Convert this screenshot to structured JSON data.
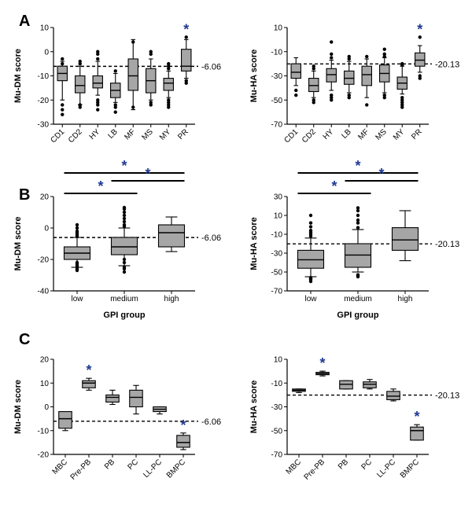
{
  "panel_labels": [
    "A",
    "B",
    "C"
  ],
  "colors": {
    "box_fill": "#a6a6a6",
    "star": "#1f3a93",
    "line": "#000000",
    "outlier": "#000000"
  },
  "chart_data": [
    {
      "id": "A-left",
      "type": "box",
      "panel": "A",
      "ylabel": "Mu-DM score",
      "xlabel": "",
      "ylim": [
        -30,
        10
      ],
      "yticks": [
        -30,
        -20,
        -10,
        0,
        10
      ],
      "reference": {
        "value": -6.06,
        "label": "-6.06"
      },
      "rotated_labels": true,
      "categories": [
        "CD1",
        "CD2",
        "HY",
        "LB",
        "MF",
        "MS",
        "MY",
        "PR"
      ],
      "boxes": [
        {
          "whisker_low": -20,
          "q1": -12,
          "median": -9,
          "q3": -6,
          "whisker_high": -4,
          "outliers": [
            -26,
            -24,
            -22,
            -5,
            -3
          ]
        },
        {
          "whisker_low": -22,
          "q1": -17,
          "median": -14,
          "q3": -10,
          "whisker_high": -6,
          "outliers": [
            -23,
            -22,
            -5,
            -4
          ]
        },
        {
          "whisker_low": -18,
          "q1": -15,
          "median": -13,
          "q3": -10,
          "whisker_high": -4,
          "outliers": [
            -24,
            -22,
            -21,
            -20,
            -3,
            -1,
            0
          ]
        },
        {
          "whisker_low": -21,
          "q1": -19,
          "median": -16,
          "q3": -13,
          "whisker_high": -9,
          "outliers": [
            -25,
            -23,
            -22,
            -8
          ]
        },
        {
          "whisker_low": -24,
          "q1": -16,
          "median": -10,
          "q3": -3,
          "whisker_high": 5,
          "outliers": [
            -23,
            4
          ]
        },
        {
          "whisker_low": -20,
          "q1": -17,
          "median": -12,
          "q3": -7,
          "whisker_high": -3,
          "outliers": [
            -22,
            -21,
            -1,
            0
          ]
        },
        {
          "whisker_low": -19,
          "q1": -16,
          "median": -13,
          "q3": -11,
          "whisker_high": -8,
          "outliers": [
            -23,
            -22,
            -21,
            -20,
            -7,
            -6,
            -5
          ]
        },
        {
          "whisker_low": -11,
          "q1": -8,
          "median": -6,
          "q3": 1,
          "whisker_high": 5,
          "outliers": [
            -13,
            -12,
            6
          ]
        }
      ],
      "significant": [
        7
      ]
    },
    {
      "id": "A-right",
      "type": "box",
      "panel": "A",
      "ylabel": "Mu-HA score",
      "xlabel": "",
      "ylim": [
        -70,
        10
      ],
      "yticks": [
        -70,
        -50,
        -30,
        -10,
        10
      ],
      "reference": {
        "value": -20.13,
        "label": "-20.13"
      },
      "rotated_labels": true,
      "categories": [
        "CD1",
        "CD2",
        "HY",
        "LB",
        "MF",
        "MS",
        "MY",
        "PR"
      ],
      "boxes": [
        {
          "whisker_low": -38,
          "q1": -32,
          "median": -27,
          "q3": -20,
          "whisker_high": -15,
          "outliers": [
            -46,
            -42
          ]
        },
        {
          "whisker_low": -48,
          "q1": -43,
          "median": -38,
          "q3": -32,
          "whisker_high": -26,
          "outliers": [
            -52,
            -50,
            -24,
            -22
          ]
        },
        {
          "whisker_low": -42,
          "q1": -35,
          "median": -29,
          "q3": -24,
          "whisker_high": -17,
          "outliers": [
            -50,
            -48,
            -46,
            -15,
            -12,
            -2
          ]
        },
        {
          "whisker_low": -44,
          "q1": -37,
          "median": -32,
          "q3": -26,
          "whisker_high": -18,
          "outliers": [
            -48,
            -46,
            -16,
            -14
          ]
        },
        {
          "whisker_low": -48,
          "q1": -38,
          "median": -29,
          "q3": -22,
          "whisker_high": -16,
          "outliers": [
            -54,
            -14
          ]
        },
        {
          "whisker_low": -44,
          "q1": -35,
          "median": -28,
          "q3": -21,
          "whisker_high": -15,
          "outliers": [
            -48,
            -46,
            -14,
            -12,
            -8
          ]
        },
        {
          "whisker_low": -45,
          "q1": -41,
          "median": -36,
          "q3": -31,
          "whisker_high": -22,
          "outliers": [
            -56,
            -54,
            -52,
            -50,
            -48,
            -21,
            -20
          ]
        },
        {
          "whisker_low": -27,
          "q1": -22,
          "median": -17,
          "q3": -11,
          "whisker_high": -5,
          "outliers": [
            -32,
            -30,
            2
          ]
        }
      ],
      "significant": [
        7
      ]
    },
    {
      "id": "B-left",
      "type": "box",
      "panel": "B",
      "ylabel": "Mu-DM score",
      "xlabel": "GPI group",
      "ylim": [
        -40,
        20
      ],
      "yticks": [
        -40,
        -20,
        0,
        20
      ],
      "reference": {
        "value": -6.06,
        "label": "-6.06"
      },
      "rotated_labels": false,
      "categories": [
        "low",
        "medium",
        "high"
      ],
      "boxes": [
        {
          "whisker_low": -25,
          "q1": -20,
          "median": -16,
          "q3": -12,
          "whisker_high": -6,
          "outliers": [
            -27,
            -26,
            -25,
            -24,
            -23,
            -22,
            -5,
            -4,
            -3,
            -2,
            0,
            2
          ]
        },
        {
          "whisker_low": -24,
          "q1": -17,
          "median": -12,
          "q3": -6,
          "whisker_high": 0,
          "outliers": [
            -28,
            -26,
            -25,
            -22,
            -20,
            1,
            2,
            4,
            6,
            8,
            10,
            12,
            13
          ]
        },
        {
          "whisker_low": -15,
          "q1": -12,
          "median": -3,
          "q3": 2,
          "whisker_high": 7,
          "outliers": []
        }
      ],
      "brackets": [
        {
          "from": 0,
          "to": 2,
          "level": 2,
          "label": "*"
        },
        {
          "from": 0,
          "to": 1,
          "level": 1,
          "label": "*"
        },
        {
          "from": 1,
          "to": 2,
          "level": 0.5,
          "label": "*"
        }
      ]
    },
    {
      "id": "B-right",
      "type": "box",
      "panel": "B",
      "ylabel": "Mu-HA score",
      "xlabel": "GPI group",
      "ylim": [
        -70,
        30
      ],
      "yticks": [
        -70,
        -50,
        -30,
        -10,
        10,
        30
      ],
      "reference": {
        "value": -20.13,
        "label": "-20.13"
      },
      "rotated_labels": false,
      "categories": [
        "low",
        "medium",
        "high"
      ],
      "boxes": [
        {
          "whisker_low": -55,
          "q1": -46,
          "median": -37,
          "q3": -27,
          "whisker_high": -14,
          "outliers": [
            -60,
            -58,
            -57,
            -56,
            -12,
            -10,
            -8,
            -6,
            -2,
            2,
            10
          ]
        },
        {
          "whisker_low": -50,
          "q1": -45,
          "median": -32,
          "q3": -20,
          "whisker_high": -5,
          "outliers": [
            -55,
            -54,
            -53,
            -3,
            2,
            5,
            10,
            15,
            18
          ]
        },
        {
          "whisker_low": -38,
          "q1": -27,
          "median": -16,
          "q3": -3,
          "whisker_high": 15,
          "outliers": []
        }
      ],
      "brackets": [
        {
          "from": 0,
          "to": 2,
          "level": 2,
          "label": "*"
        },
        {
          "from": 0,
          "to": 1,
          "level": 1,
          "label": "*"
        },
        {
          "from": 1,
          "to": 2,
          "level": 0.5,
          "label": "*"
        }
      ]
    },
    {
      "id": "C-left",
      "type": "box",
      "panel": "C",
      "ylabel": "Mu-DM score",
      "xlabel": "",
      "ylim": [
        -20,
        20
      ],
      "yticks": [
        -20,
        -10,
        0,
        10,
        20
      ],
      "reference": {
        "value": -6.06,
        "label": "-6.06"
      },
      "rotated_labels": true,
      "categories": [
        "MBC",
        "Pre-PB",
        "PB",
        "PC",
        "LL-PC",
        "BMPC"
      ],
      "boxes": [
        {
          "whisker_low": -10,
          "q1": -9,
          "median": -5,
          "q3": -2,
          "whisker_high": -2,
          "outliers": []
        },
        {
          "whisker_low": 7,
          "q1": 8,
          "median": 10,
          "q3": 11,
          "whisker_high": 12,
          "outliers": []
        },
        {
          "whisker_low": 1,
          "q1": 2,
          "median": 4,
          "q3": 5,
          "whisker_high": 7,
          "outliers": []
        },
        {
          "whisker_low": -3,
          "q1": 0,
          "median": 4,
          "q3": 7,
          "whisker_high": 9,
          "outliers": []
        },
        {
          "whisker_low": -3,
          "q1": -2,
          "median": -1,
          "q3": 0,
          "whisker_high": 0,
          "outliers": []
        },
        {
          "whisker_low": -18,
          "q1": -17,
          "median": -15,
          "q3": -12,
          "whisker_high": -11,
          "outliers": []
        }
      ],
      "significant": [
        1,
        5
      ]
    },
    {
      "id": "C-right",
      "type": "box",
      "panel": "C",
      "ylabel": "Mu-HA score",
      "xlabel": "",
      "ylim": [
        -70,
        10
      ],
      "yticks": [
        -70,
        -50,
        -30,
        -10,
        10
      ],
      "reference": {
        "value": -20.13,
        "label": "-20.13"
      },
      "rotated_labels": true,
      "categories": [
        "MBC",
        "Pre-PB",
        "PB",
        "PC",
        "LL-PC",
        "BMPC"
      ],
      "boxes": [
        {
          "whisker_low": -18,
          "q1": -17,
          "median": -16,
          "q3": -15,
          "whisker_high": -15,
          "outliers": []
        },
        {
          "whisker_low": -4,
          "q1": -3,
          "median": -2,
          "q3": -1,
          "whisker_high": 0,
          "outliers": []
        },
        {
          "whisker_low": -15,
          "q1": -15,
          "median": -11,
          "q3": -8,
          "whisker_high": -8,
          "outliers": []
        },
        {
          "whisker_low": -15,
          "q1": -14,
          "median": -11,
          "q3": -9,
          "whisker_high": -7,
          "outliers": []
        },
        {
          "whisker_low": -25,
          "q1": -24,
          "median": -21,
          "q3": -17,
          "whisker_high": -15,
          "outliers": []
        },
        {
          "whisker_low": -58,
          "q1": -58,
          "median": -50,
          "q3": -47,
          "whisker_high": -45,
          "outliers": []
        }
      ],
      "significant": [
        1,
        5
      ]
    }
  ]
}
